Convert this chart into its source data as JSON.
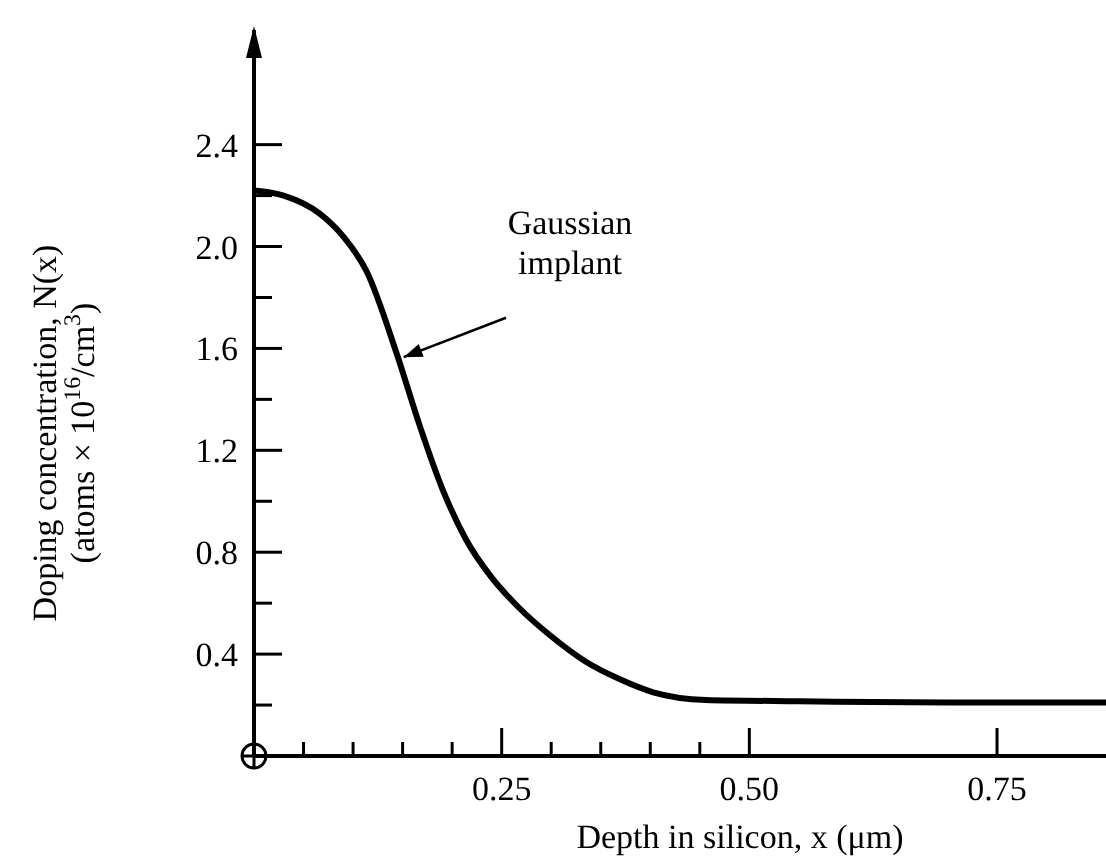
{
  "chart_data": {
    "type": "line",
    "xlabel": "Depth in silicon, x (μm)",
    "ylabel": "Doping concentration, N(x)\n(atoms × 10$^{16}$/cm$^{3}$)",
    "x": [
      0,
      0.03,
      0.066,
      0.09,
      0.114,
      0.144,
      0.167,
      0.19,
      0.214,
      0.24,
      0.268,
      0.3,
      0.335,
      0.37,
      0.403,
      0.456,
      0.55,
      0.7,
      0.86
    ],
    "series": [
      {
        "color": "#000000",
        "values": [
          2.22,
          2.2,
          2.13,
          2.04,
          1.9,
          1.58,
          1.3,
          1.05,
          0.85,
          0.7,
          0.58,
          0.47,
          0.37,
          0.3,
          0.25,
          0.22,
          0.215,
          0.21,
          0.21
        ]
      }
    ],
    "xlim": [
      0,
      0.86
    ],
    "ylim": [
      0,
      2.85
    ],
    "xticks": [
      {
        "value": 0.05,
        "label": null
      },
      {
        "value": 0.1,
        "label": null
      },
      {
        "value": 0.15,
        "label": null
      },
      {
        "value": 0.2,
        "label": null
      },
      {
        "value": 0.25,
        "label": "0.25"
      },
      {
        "value": 0.3,
        "label": null
      },
      {
        "value": 0.35,
        "label": null
      },
      {
        "value": 0.4,
        "label": null
      },
      {
        "value": 0.45,
        "label": null
      },
      {
        "value": 0.5,
        "label": "0.50"
      },
      {
        "value": 0.75,
        "label": "0.75"
      }
    ],
    "yticks": [
      {
        "value": 0.2,
        "label": null
      },
      0.4,
      {
        "value": 0.6,
        "label": null
      },
      0.8,
      {
        "value": 1.0,
        "label": null
      },
      1.2,
      {
        "value": 1.4,
        "label": null
      },
      1.6,
      {
        "value": 1.8,
        "label": null
      },
      {
        "value": 2.0,
        "label": "2.0"
      },
      {
        "value": 2.2,
        "label": null
      },
      2.4
    ],
    "annotations": [
      {
        "text": "Gaussian\nimplant",
        "x": 0.145,
        "y": 1.55
      }
    ],
    "grid": false,
    "marker": "none",
    "line_style": "solid"
  }
}
